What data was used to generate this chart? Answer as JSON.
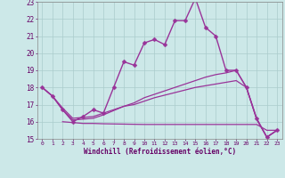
{
  "background_color": "#cce8e8",
  "grid_color": "#aacccc",
  "line_color": "#993399",
  "xlabel": "Windchill (Refroidissement éolien,°C)",
  "xlim": [
    -0.5,
    23.5
  ],
  "ylim": [
    15,
    23
  ],
  "yticks": [
    15,
    16,
    17,
    18,
    19,
    20,
    21,
    22,
    23
  ],
  "xticks": [
    0,
    1,
    2,
    3,
    4,
    5,
    6,
    7,
    8,
    9,
    10,
    11,
    12,
    13,
    14,
    15,
    16,
    17,
    18,
    19,
    20,
    21,
    22,
    23
  ],
  "series": [
    {
      "x": [
        0,
        1,
        2,
        3,
        4,
        5,
        6,
        7,
        8,
        9,
        10,
        11,
        12,
        13,
        14,
        15,
        16,
        17,
        18,
        19,
        20,
        21,
        22,
        23
      ],
      "y": [
        18.0,
        17.5,
        16.7,
        16.0,
        16.3,
        16.7,
        16.5,
        18.0,
        19.5,
        19.3,
        20.6,
        20.8,
        20.5,
        21.9,
        21.9,
        23.2,
        21.5,
        21.0,
        19.0,
        19.0,
        18.0,
        16.2,
        15.1,
        15.5
      ],
      "marker": "D",
      "markersize": 2.5,
      "linewidth": 1.0
    },
    {
      "x": [
        0,
        1,
        2,
        3,
        4,
        5,
        6,
        7,
        8,
        9,
        10,
        11,
        12,
        13,
        14,
        15,
        16,
        17,
        18,
        19,
        20,
        21,
        22,
        23
      ],
      "y": [
        18.0,
        17.5,
        16.7,
        16.1,
        16.15,
        16.2,
        16.4,
        16.65,
        16.9,
        17.1,
        17.4,
        17.6,
        17.8,
        18.0,
        18.2,
        18.4,
        18.6,
        18.75,
        18.85,
        19.0,
        18.0,
        16.15,
        15.1,
        15.5
      ],
      "marker": null,
      "linewidth": 0.9
    },
    {
      "x": [
        0,
        1,
        2,
        3,
        4,
        5,
        6,
        7,
        8,
        9,
        10,
        11,
        12,
        13,
        14,
        15,
        16,
        17,
        18,
        19,
        20,
        21,
        22,
        23
      ],
      "y": [
        18.0,
        17.5,
        16.8,
        16.2,
        16.25,
        16.3,
        16.5,
        16.7,
        16.9,
        17.0,
        17.2,
        17.4,
        17.55,
        17.7,
        17.85,
        18.0,
        18.1,
        18.2,
        18.3,
        18.4,
        18.0,
        16.15,
        15.1,
        15.5
      ],
      "marker": null,
      "linewidth": 0.9
    },
    {
      "x": [
        2,
        3,
        4,
        5,
        6,
        7,
        8,
        9,
        10,
        11,
        12,
        13,
        14,
        15,
        16,
        17,
        18,
        19,
        20,
        21,
        22,
        23
      ],
      "y": [
        16.0,
        15.95,
        15.9,
        15.9,
        15.88,
        15.87,
        15.86,
        15.85,
        15.84,
        15.84,
        15.84,
        15.84,
        15.84,
        15.84,
        15.84,
        15.84,
        15.84,
        15.84,
        15.84,
        15.84,
        15.5,
        15.5
      ],
      "marker": null,
      "linewidth": 0.9
    }
  ]
}
